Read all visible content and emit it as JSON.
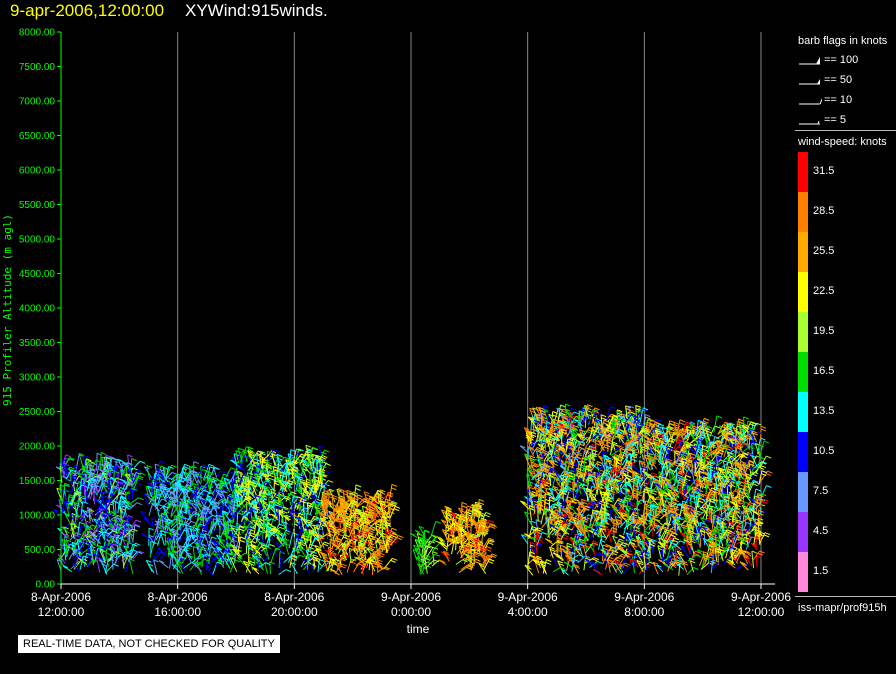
{
  "header": {
    "time": "9-apr-2006,12:00:00",
    "name": "XYWind:915winds."
  },
  "legend": {
    "flags_title": "barb flags in knots",
    "flags": [
      "== 100",
      "== 50",
      "== 10",
      "== 5"
    ],
    "speed_title": "wind-speed: knots",
    "speed_scale": [
      {
        "label": "31.5",
        "color": "#ff0000"
      },
      {
        "label": "28.5",
        "color": "#ff8000"
      },
      {
        "label": "25.5",
        "color": "#ffaa00"
      },
      {
        "label": "22.5",
        "color": "#ffff00"
      },
      {
        "label": "19.5",
        "color": "#aaff33"
      },
      {
        "label": "16.5",
        "color": "#00dd00"
      },
      {
        "label": "13.5",
        "color": "#00ffff"
      },
      {
        "label": "10.5",
        "color": "#0000ff"
      },
      {
        "label": "7.5",
        "color": "#6699ff"
      },
      {
        "label": "4.5",
        "color": "#9933ff"
      },
      {
        "label": "1.5",
        "color": "#ff88dd"
      }
    ],
    "footer": "iss-mapr/prof915h"
  },
  "qc_note": "REAL-TIME DATA, NOT CHECKED FOR QUALITY",
  "chart_data": {
    "type": "scatter",
    "plot": "wind barbs (profiler wind speed/direction vs time and altitude)",
    "xlabel": "time",
    "ylabel": "915 Profiler Altitude (m agl)",
    "xlim_hours": [
      0,
      24
    ],
    "x_ticks": [
      {
        "hour": 0,
        "label": [
          "8-Apr-2006",
          "12:00:00"
        ]
      },
      {
        "hour": 4,
        "label": [
          "8-Apr-2006",
          "16:00:00"
        ]
      },
      {
        "hour": 8,
        "label": [
          "8-Apr-2006",
          "20:00:00"
        ]
      },
      {
        "hour": 12,
        "label": [
          "9-Apr-2006",
          "0:00:00"
        ]
      },
      {
        "hour": 16,
        "label": [
          "9-Apr-2006",
          "4:00:00"
        ]
      },
      {
        "hour": 20,
        "label": [
          "9-Apr-2006",
          "8:00:00"
        ]
      },
      {
        "hour": 24,
        "label": [
          "9-Apr-2006",
          "12:00:00"
        ]
      }
    ],
    "ylim": [
      0,
      8000
    ],
    "y_ticks": [
      "0.00",
      "500.00",
      "1000.00",
      "1500.00",
      "2000.00",
      "2500.00",
      "3000.00",
      "3500.00",
      "4000.00",
      "4500.00",
      "5000.00",
      "5500.00",
      "6000.00",
      "6500.00",
      "7000.00",
      "7500.00",
      "8000.00"
    ],
    "vertical_grid": true,
    "legend_position": "right",
    "observation_clusters": [
      {
        "t_start": 0.0,
        "t_end": 2.5,
        "alt_max": 1700,
        "speed_range": [
          4,
          20
        ]
      },
      {
        "t_start": 3.0,
        "t_end": 6.0,
        "alt_max": 1550,
        "speed_range": [
          6,
          18
        ]
      },
      {
        "t_start": 6.0,
        "t_end": 9.0,
        "alt_max": 1800,
        "speed_range": [
          10,
          24
        ]
      },
      {
        "t_start": 9.0,
        "t_end": 11.3,
        "alt_max": 1200,
        "speed_range": [
          18,
          31
        ]
      },
      {
        "t_start": 12.2,
        "t_end": 12.8,
        "alt_max": 700,
        "speed_range": [
          14,
          20
        ]
      },
      {
        "t_start": 13.2,
        "t_end": 14.6,
        "alt_max": 1000,
        "speed_range": [
          20,
          31
        ]
      },
      {
        "t_start": 16.0,
        "t_end": 20.0,
        "alt_max": 2400,
        "speed_range": [
          8,
          31
        ]
      },
      {
        "t_start": 20.0,
        "t_end": 24.0,
        "alt_max": 2200,
        "speed_range": [
          8,
          31
        ]
      }
    ]
  }
}
